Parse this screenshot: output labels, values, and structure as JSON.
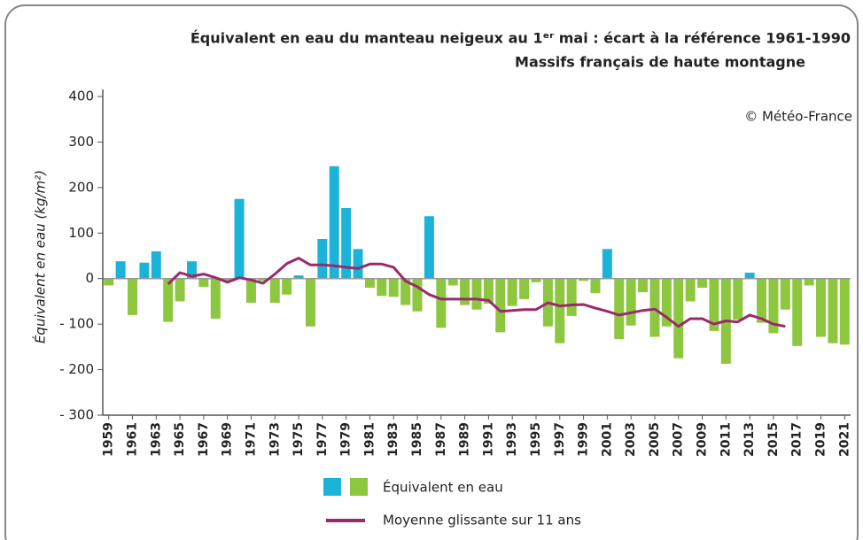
{
  "chart_data": {
    "type": "bar",
    "title": "Équivalent en eau du manteau neigeux au 1ᵉʳ mai : écart à la référence 1961-1990",
    "subtitle": "Massifs français de haute montagne",
    "annotation": "© Météo-France",
    "y_label": "Équivalent en eau (kg/m²)",
    "categories": [
      "1959",
      null,
      "1961",
      null,
      "1963",
      null,
      "1965",
      null,
      "1967",
      null,
      "1969",
      null,
      "1971",
      null,
      "1973",
      null,
      "1975",
      null,
      "1977",
      null,
      "1979",
      null,
      "1981",
      null,
      "1983",
      null,
      "1985",
      null,
      "1987",
      null,
      "1989",
      null,
      "1991",
      null,
      "1993",
      null,
      "1995",
      null,
      "1997",
      null,
      "1999",
      null,
      "2001",
      null,
      "2003",
      null,
      "2005",
      null,
      "2007",
      null,
      "2009",
      null,
      "2011",
      null,
      "2013",
      null,
      "2015",
      null,
      "2017",
      null,
      "2019",
      null,
      "2021"
    ],
    "series": [
      {
        "name": "Équivalent en eau",
        "type": "bar",
        "color_positive": "#1cb3d9",
        "color_negative": "#8dc63f",
        "values": [
          -15,
          38,
          -80,
          35,
          60,
          -95,
          -50,
          38,
          -18,
          -88,
          -5,
          175,
          -53,
          -5,
          -53,
          -35,
          7,
          -105,
          87,
          247,
          155,
          65,
          -20,
          -38,
          -40,
          -58,
          -72,
          137,
          -108,
          -15,
          -58,
          -68,
          -55,
          -118,
          -60,
          -45,
          -8,
          -105,
          -142,
          -82,
          -5,
          -32,
          65,
          -133,
          -103,
          -30,
          -128,
          -105,
          -175,
          -50,
          -20,
          -115,
          -187,
          -90,
          13,
          -97,
          -120,
          -68,
          -148,
          -15,
          -128,
          -142,
          -145
        ]
      },
      {
        "name": "Moyenne glissante sur 11 ans",
        "type": "line",
        "color": "#9b2a6b",
        "values": [
          null,
          null,
          null,
          null,
          null,
          -12,
          13,
          5,
          10,
          2,
          -8,
          2,
          -3,
          -10,
          10,
          33,
          45,
          30,
          30,
          28,
          25,
          22,
          32,
          32,
          25,
          -5,
          -18,
          -35,
          -45,
          -45,
          -45,
          -45,
          -48,
          -72,
          -70,
          -68,
          -68,
          -53,
          -60,
          -58,
          -57,
          -65,
          -72,
          -80,
          -75,
          -70,
          -67,
          -85,
          -105,
          -88,
          -88,
          -100,
          -93,
          -95,
          -80,
          -88,
          -100,
          -105,
          null,
          null,
          null,
          null,
          null
        ]
      }
    ],
    "ylim": [
      -300,
      400
    ],
    "yticks": [
      {
        "value": -300,
        "label": "- 300"
      },
      {
        "value": -200,
        "label": "- 200"
      },
      {
        "value": -100,
        "label": "- 100"
      },
      0,
      100,
      200,
      300,
      400
    ]
  }
}
